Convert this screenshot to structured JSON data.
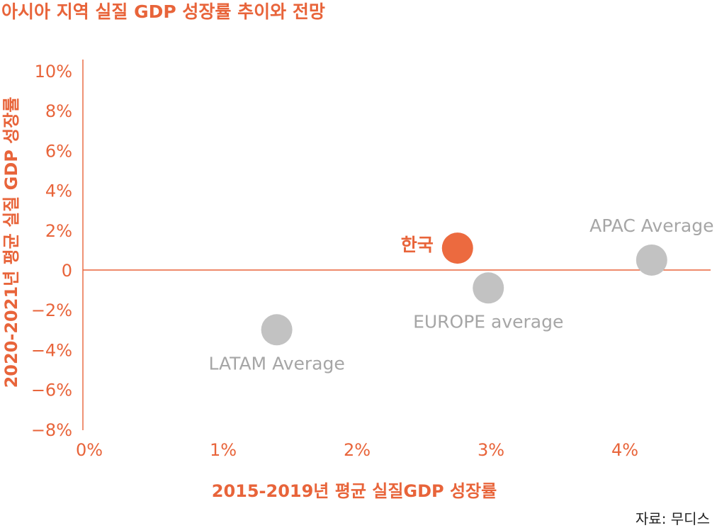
{
  "colors": {
    "accent": "#e8643a",
    "highlight_point": "#ec6a3f",
    "neutral_point": "#c2c2c2",
    "neutral_text": "#a6a6a6",
    "source_text": "#222222"
  },
  "chart_data": {
    "type": "scatter",
    "title": "아시아 지역 실질 GDP 성장률 추이와 전망",
    "xlabel": "2015-2019년 평균 실질GDP 성장률",
    "ylabel": "2020-2021년 평균 실질 GDP 성장률",
    "xlim": [
      0,
      4.6
    ],
    "ylim": [
      -8,
      10
    ],
    "x_ticks": [
      {
        "value": 0,
        "label": "0%"
      },
      {
        "value": 1,
        "label": "1%"
      },
      {
        "value": 2,
        "label": "2%"
      },
      {
        "value": 3,
        "label": "3%"
      },
      {
        "value": 4,
        "label": "4%"
      }
    ],
    "y_ticks": [
      {
        "value": 10,
        "label": "10%"
      },
      {
        "value": 8,
        "label": "8%"
      },
      {
        "value": 6,
        "label": "6%"
      },
      {
        "value": 4,
        "label": "4%"
      },
      {
        "value": 2,
        "label": "2%"
      },
      {
        "value": 0,
        "label": "0"
      },
      {
        "value": -2,
        "label": "−2%"
      },
      {
        "value": -4,
        "label": "−4%"
      },
      {
        "value": -6,
        "label": "−6%"
      },
      {
        "value": -8,
        "label": "−8%"
      }
    ],
    "points": [
      {
        "name": "한국",
        "x": 2.75,
        "y": 1.1,
        "highlight": true,
        "label_side": "left"
      },
      {
        "name": "APAC Average",
        "x": 4.2,
        "y": 0.5,
        "highlight": false,
        "label_side": "above"
      },
      {
        "name": "EUROPE average",
        "x": 2.98,
        "y": -0.9,
        "highlight": false,
        "label_side": "below"
      },
      {
        "name": "LATAM Average",
        "x": 1.4,
        "y": -3.0,
        "highlight": false,
        "label_side": "below"
      }
    ],
    "grid": false,
    "source": "자료: 무디스"
  }
}
